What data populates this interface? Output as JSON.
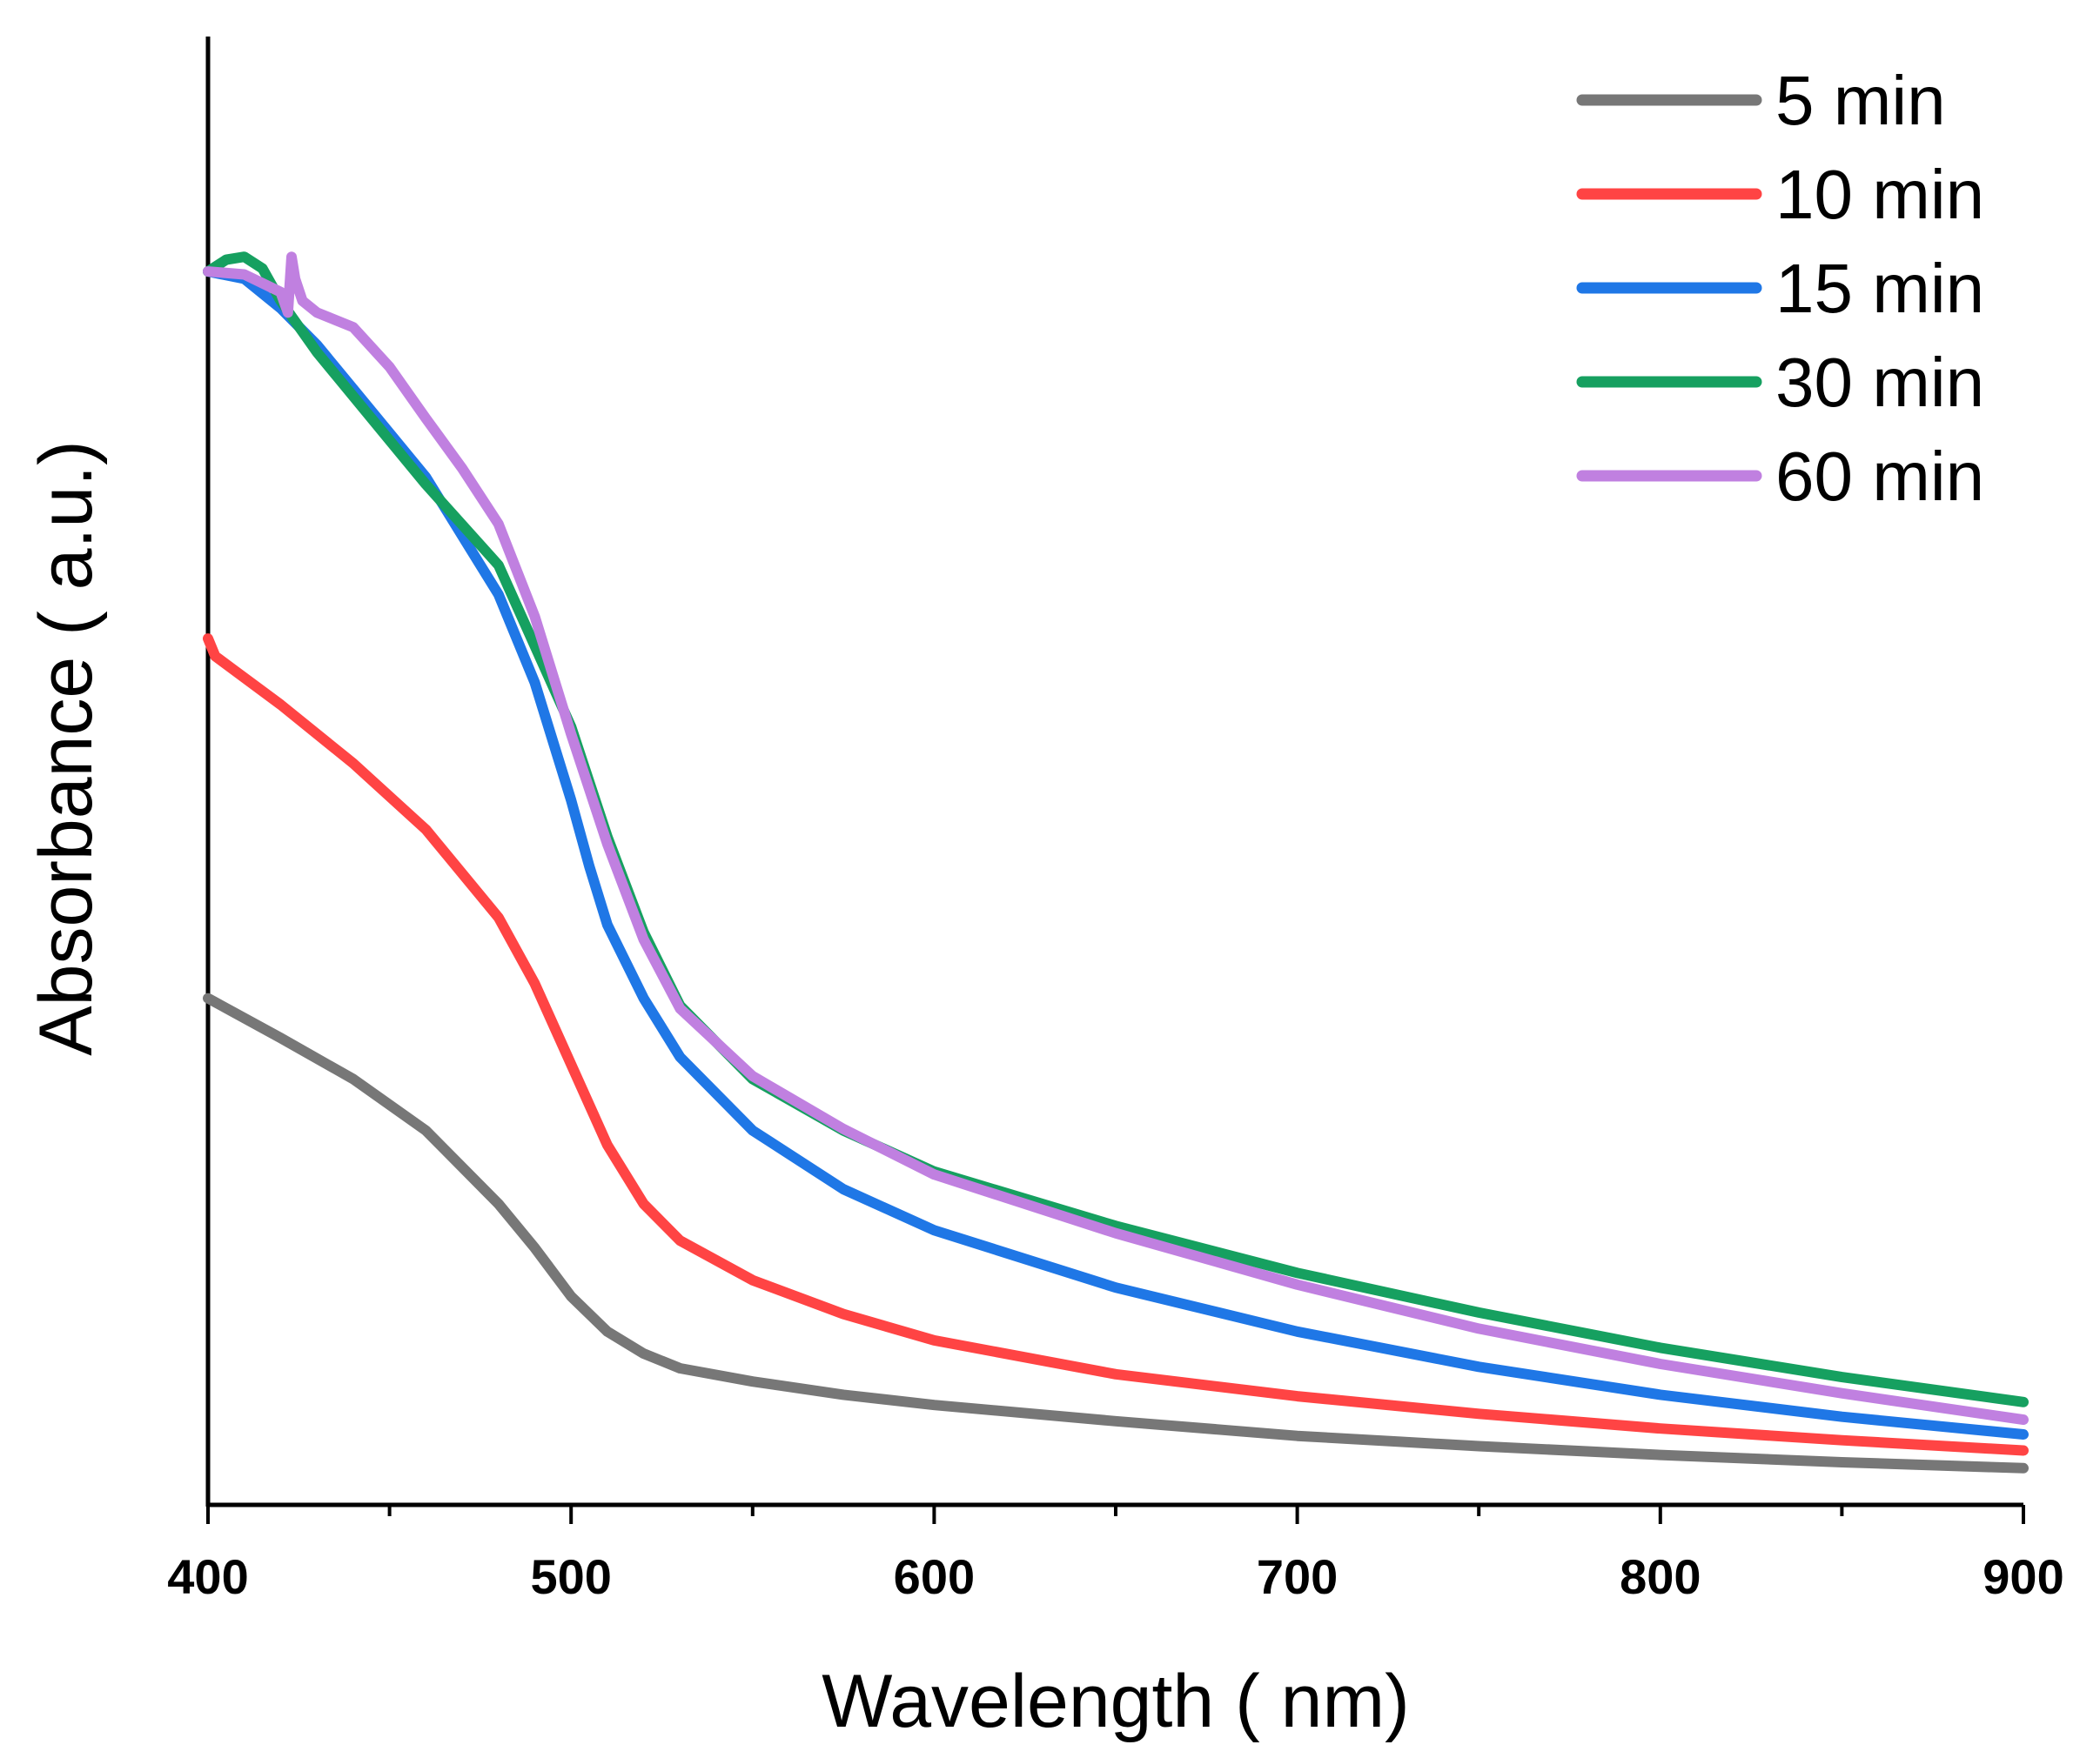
{
  "chart_data": {
    "type": "line",
    "title": "",
    "xlabel": "Wavelength ( nm)",
    "ylabel": "Absorbance ( a.u.)",
    "xlim": [
      400,
      900
    ],
    "ylim": [
      0,
      1
    ],
    "xticks": [
      400,
      500,
      600,
      700,
      800,
      900
    ],
    "xtick_labels": [
      "400",
      "500",
      "600",
      "700",
      "800",
      "900"
    ],
    "yticks_shown": false,
    "legend_position": "top-right",
    "series": [
      {
        "name": "5 min",
        "color": "#777777",
        "x": [
          400,
          420,
          440,
          460,
          480,
          490,
          500,
          510,
          520,
          530,
          550,
          575,
          600,
          650,
          700,
          750,
          800,
          850,
          900
        ],
        "y": [
          0.345,
          0.318,
          0.29,
          0.255,
          0.205,
          0.175,
          0.142,
          0.118,
          0.103,
          0.093,
          0.084,
          0.075,
          0.068,
          0.057,
          0.047,
          0.04,
          0.034,
          0.029,
          0.025
        ]
      },
      {
        "name": "10 min",
        "color": "#ff4444",
        "x": [
          400,
          402,
          420,
          440,
          460,
          480,
          490,
          500,
          510,
          520,
          530,
          550,
          575,
          600,
          650,
          700,
          750,
          800,
          850,
          900
        ],
        "y": [
          0.59,
          0.578,
          0.545,
          0.505,
          0.46,
          0.4,
          0.355,
          0.3,
          0.245,
          0.205,
          0.18,
          0.153,
          0.13,
          0.112,
          0.089,
          0.074,
          0.062,
          0.052,
          0.044,
          0.037
        ]
      },
      {
        "name": "15 min",
        "color": "#1f77e6",
        "x": [
          400,
          410,
          420,
          430,
          440,
          460,
          480,
          490,
          500,
          505,
          510,
          520,
          530,
          550,
          575,
          600,
          650,
          700,
          750,
          800,
          850,
          900
        ],
        "y": [
          0.84,
          0.835,
          0.815,
          0.79,
          0.76,
          0.7,
          0.62,
          0.56,
          0.48,
          0.435,
          0.395,
          0.345,
          0.305,
          0.255,
          0.215,
          0.187,
          0.148,
          0.118,
          0.094,
          0.075,
          0.06,
          0.048
        ]
      },
      {
        "name": "30 min",
        "color": "#16a060",
        "x": [
          400,
          405,
          410,
          415,
          420,
          430,
          440,
          460,
          480,
          500,
          510,
          520,
          530,
          550,
          575,
          600,
          650,
          700,
          750,
          800,
          850,
          900
        ],
        "y": [
          0.84,
          0.848,
          0.85,
          0.842,
          0.82,
          0.785,
          0.755,
          0.695,
          0.64,
          0.53,
          0.455,
          0.39,
          0.34,
          0.29,
          0.255,
          0.227,
          0.19,
          0.158,
          0.131,
          0.107,
          0.087,
          0.07
        ]
      },
      {
        "name": "60 min",
        "color": "#c080e0",
        "x": [
          400,
          410,
          420,
          422,
          423,
          424,
          426,
          430,
          440,
          450,
          460,
          470,
          480,
          490,
          500,
          510,
          520,
          530,
          550,
          575,
          600,
          650,
          700,
          750,
          800,
          850,
          900
        ],
        "y": [
          0.84,
          0.838,
          0.826,
          0.812,
          0.85,
          0.835,
          0.82,
          0.812,
          0.802,
          0.775,
          0.74,
          0.706,
          0.668,
          0.605,
          0.525,
          0.45,
          0.385,
          0.338,
          0.292,
          0.256,
          0.225,
          0.185,
          0.15,
          0.12,
          0.096,
          0.076,
          0.058
        ]
      }
    ]
  }
}
